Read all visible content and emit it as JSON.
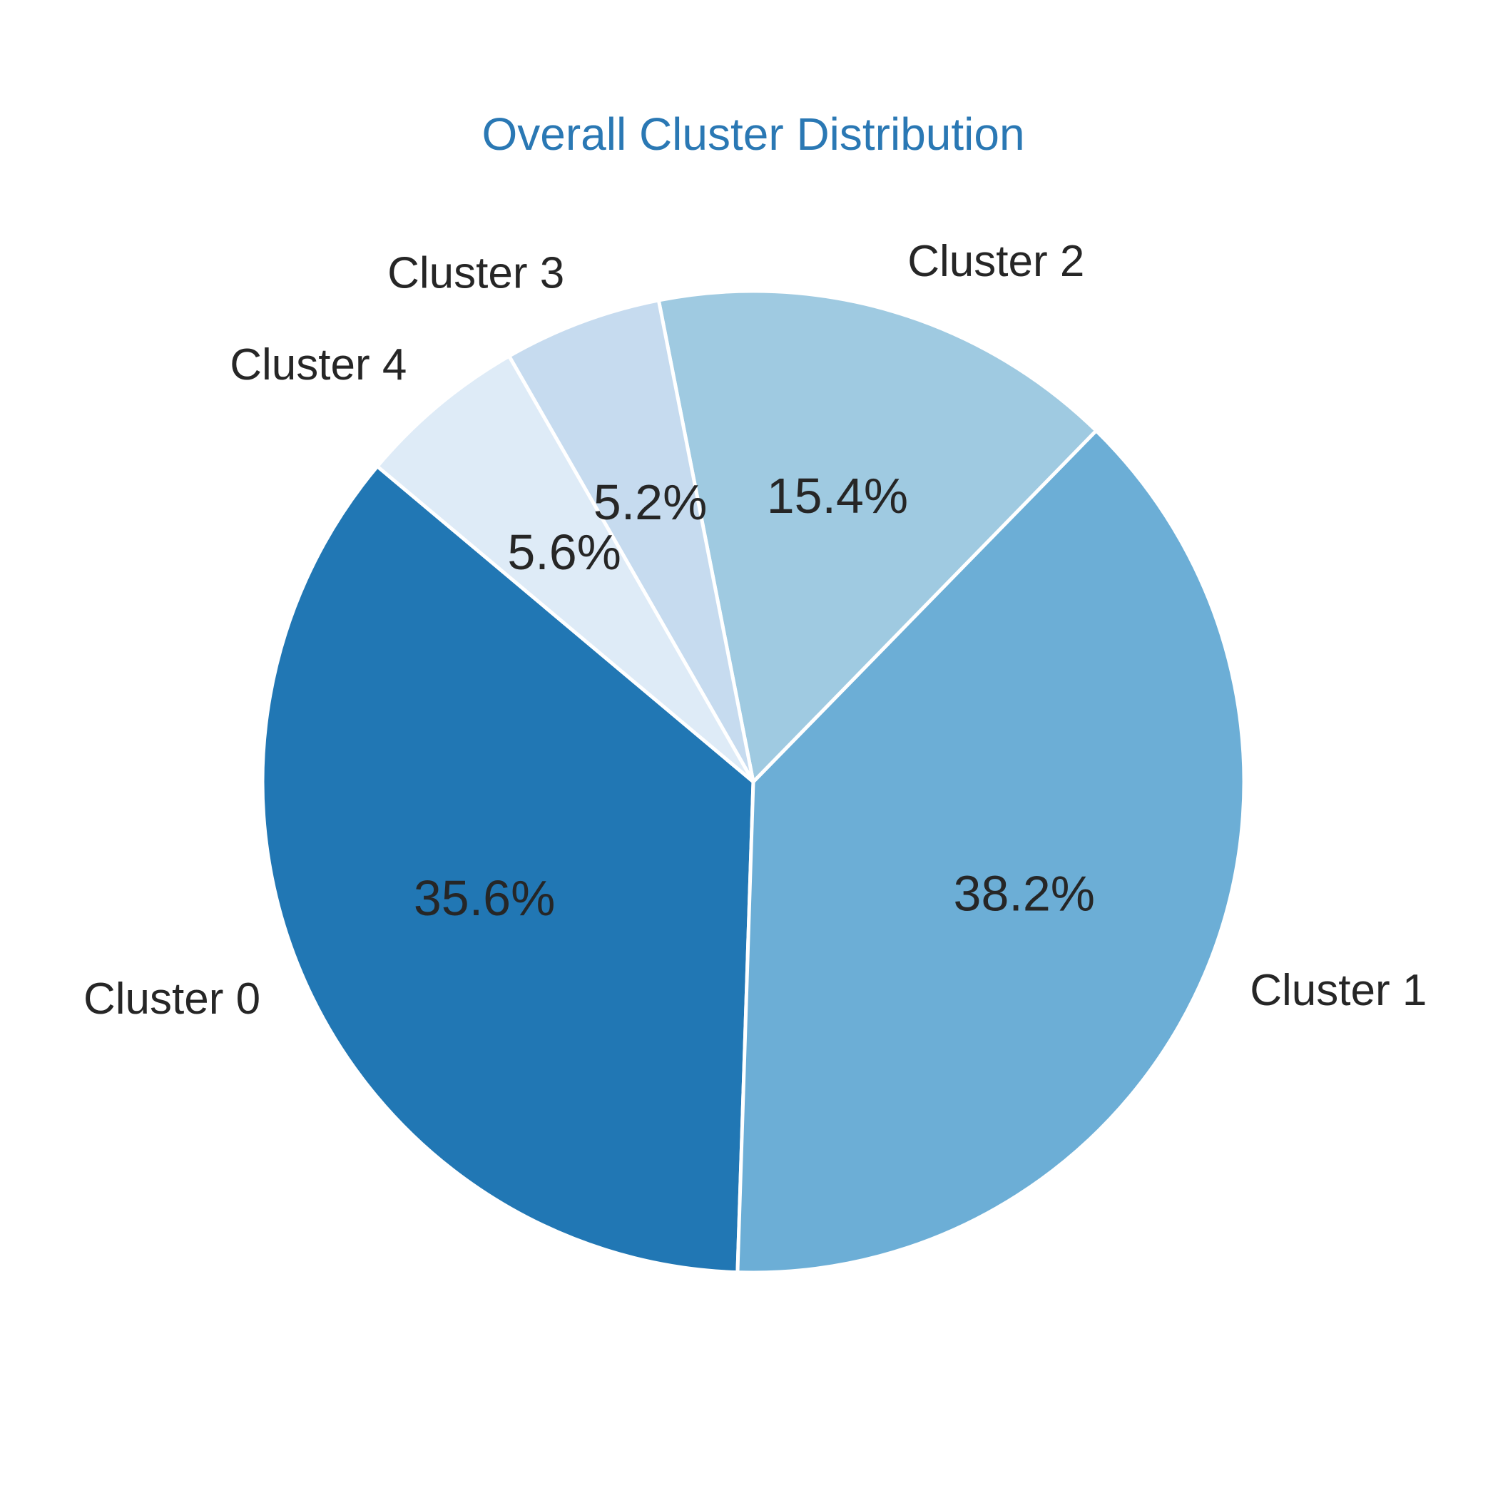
{
  "chart_data": {
    "type": "pie",
    "title": "Overall Cluster Distribution",
    "labels": [
      "Cluster 0",
      "Cluster 1",
      "Cluster 2",
      "Cluster 3",
      "Cluster 4"
    ],
    "values": [
      35.6,
      38.2,
      15.4,
      5.2,
      5.6
    ],
    "value_labels": [
      "35.6%",
      "38.2%",
      "15.4%",
      "5.2%",
      "5.6%"
    ],
    "colors": [
      "#2177b4",
      "#6caed6",
      "#9fcae1",
      "#c6dbef",
      "#deebf7"
    ],
    "start_angle_deg": 140,
    "direction": "counterclockwise",
    "legend": "none"
  }
}
